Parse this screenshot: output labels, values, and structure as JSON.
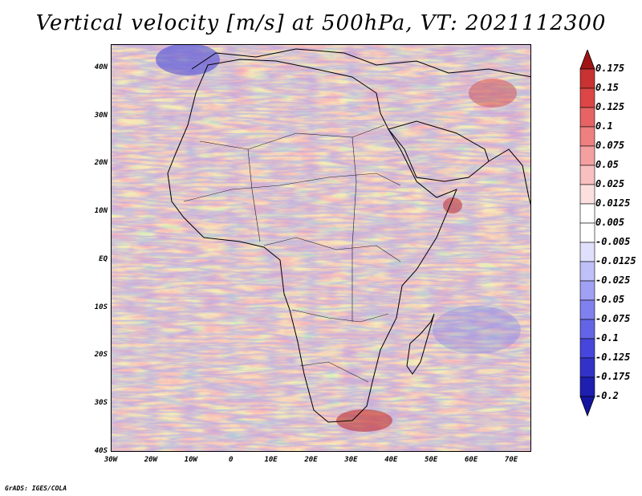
{
  "title": "Vertical velocity [m/s] at 500hPa, VT: 2021112300",
  "credit": "GrADS: IGES/COLA",
  "map": {
    "lon_range": [
      -30,
      75
    ],
    "lat_range": [
      -40,
      45
    ],
    "field": "vertical velocity at 500hPa",
    "lat_ticks": [
      "40N",
      "30N",
      "20N",
      "10N",
      "EQ",
      "10S",
      "20S",
      "30S",
      "40S"
    ],
    "lat_values": [
      40,
      30,
      20,
      10,
      0,
      -10,
      -20,
      -30,
      -40
    ],
    "lon_ticks": [
      "30W",
      "20W",
      "10W",
      "0",
      "10E",
      "20E",
      "30E",
      "40E",
      "50E",
      "60E",
      "70E"
    ],
    "lon_values": [
      -30,
      -20,
      -10,
      0,
      10,
      20,
      30,
      40,
      50,
      60,
      70
    ]
  },
  "colorbar": {
    "labels": [
      "0.175",
      "0.15",
      "0.125",
      "0.1",
      "0.075",
      "0.05",
      "0.025",
      "0.0125",
      "0.005",
      "-0.005",
      "-0.0125",
      "-0.025",
      "-0.05",
      "-0.075",
      "-0.1",
      "-0.125",
      "-0.175",
      "-0.2"
    ],
    "colors": [
      "#b01e1e",
      "#c83232",
      "#dc4646",
      "#e66464",
      "#ee8080",
      "#f4a0a0",
      "#f8c0c0",
      "#fce0e0",
      "#ffffff",
      "#ffffff",
      "#e0e0fc",
      "#c0c0f8",
      "#a0a0f4",
      "#8080ee",
      "#6464e6",
      "#4646dc",
      "#3232c8",
      "#1e1eb0",
      "#1414a0"
    ],
    "top_arrow_color": "#a01414",
    "bottom_arrow_color": "#1414a0"
  }
}
